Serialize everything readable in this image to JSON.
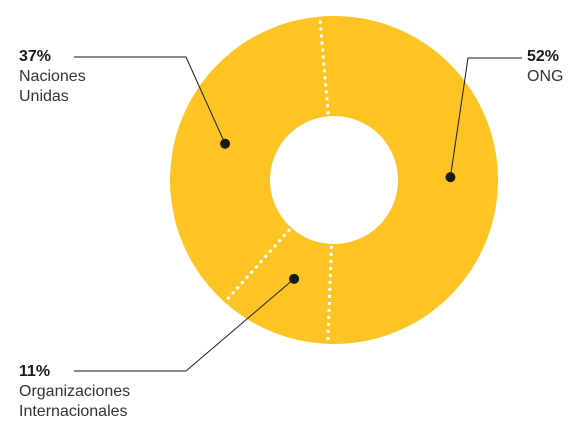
{
  "chart_data": {
    "type": "pie",
    "variant": "donut",
    "title": "",
    "slices": [
      {
        "label_lines": [
          "ONG"
        ],
        "pct_label": "52%",
        "value": 52
      },
      {
        "label_lines": [
          "Organizaciones",
          "Internacionales"
        ],
        "pct_label": "11%",
        "value": 11
      },
      {
        "label_lines": [
          "Naciones",
          "Unidas"
        ],
        "pct_label": "37%",
        "value": 37
      }
    ],
    "colors": {
      "slice": "#FDC424",
      "separator": "#ffffff",
      "leader": "#1a1a1a"
    }
  }
}
